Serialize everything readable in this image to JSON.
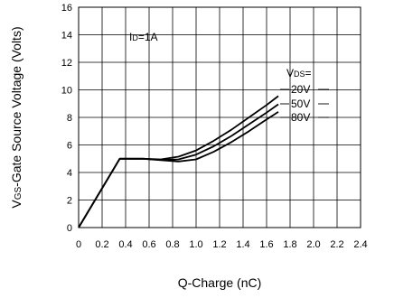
{
  "chart_data": {
    "type": "line",
    "title": "",
    "xlabel": "Q-Charge (nC)",
    "ylabel": "VGS-Gate Source Voltage (Volts)",
    "ylabel_main": "V",
    "ylabel_sub": "GS",
    "ylabel_rest": "-Gate Source Voltage (Volts)",
    "xlim": [
      0,
      2.4
    ],
    "ylim": [
      0,
      16
    ],
    "x_ticks": [
      "0",
      "0.2",
      "0.4",
      "0.6",
      "0.8",
      "1.0",
      "1.2",
      "1.4",
      "1.6",
      "1.8",
      "2.0",
      "2.2",
      "2.4"
    ],
    "y_ticks": [
      "0",
      "2",
      "4",
      "6",
      "8",
      "10",
      "12",
      "14",
      "16"
    ],
    "grid": true,
    "annotations": {
      "id_main": "I",
      "id_sub": "D",
      "id_rest": "=1A",
      "vds_main": "V",
      "vds_sub": "DS",
      "vds_rest": "="
    },
    "series": [
      {
        "name": "20V",
        "points": [
          [
            0,
            0
          ],
          [
            0.35,
            5.0
          ],
          [
            0.55,
            5.0
          ],
          [
            0.7,
            4.95
          ],
          [
            0.85,
            5.15
          ],
          [
            1.0,
            5.6
          ],
          [
            1.15,
            6.3
          ],
          [
            1.3,
            7.1
          ],
          [
            1.45,
            8.0
          ],
          [
            1.6,
            8.9
          ],
          [
            1.7,
            9.55
          ]
        ]
      },
      {
        "name": "50V",
        "points": [
          [
            0,
            0
          ],
          [
            0.35,
            5.0
          ],
          [
            0.55,
            5.0
          ],
          [
            0.7,
            4.92
          ],
          [
            0.85,
            4.95
          ],
          [
            1.0,
            5.3
          ],
          [
            1.15,
            5.9
          ],
          [
            1.3,
            6.65
          ],
          [
            1.45,
            7.5
          ],
          [
            1.6,
            8.35
          ],
          [
            1.7,
            8.95
          ]
        ]
      },
      {
        "name": "80V",
        "points": [
          [
            0,
            0
          ],
          [
            0.35,
            5.0
          ],
          [
            0.55,
            5.0
          ],
          [
            0.7,
            4.9
          ],
          [
            0.85,
            4.8
          ],
          [
            1.0,
            4.95
          ],
          [
            1.15,
            5.5
          ],
          [
            1.3,
            6.2
          ],
          [
            1.45,
            7.0
          ],
          [
            1.6,
            7.85
          ],
          [
            1.7,
            8.4
          ]
        ]
      }
    ]
  }
}
